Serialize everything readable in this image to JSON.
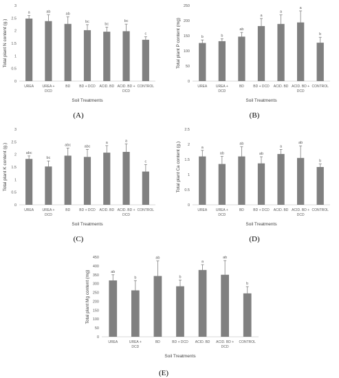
{
  "chart_data": [
    {
      "type": "bar",
      "panel": "(A)",
      "categories": [
        "UREA",
        "UREA +\nDCD",
        "BD",
        "BD + DCD",
        "ACID. BD",
        "ACID. BD +\nDCD",
        "CONTROL"
      ],
      "values": [
        2.48,
        2.38,
        2.27,
        2.02,
        1.96,
        1.98,
        1.64
      ],
      "errors": [
        0.12,
        0.25,
        0.28,
        0.22,
        0.18,
        0.28,
        0.12
      ],
      "letters": [
        "a",
        "ab",
        "ab",
        "bc",
        "bc",
        "bc",
        "c"
      ],
      "ylabel": "Total plant N content (g.)",
      "xlabel": "Soil Treatments",
      "ylim": [
        0,
        3
      ],
      "yticks": [
        "0",
        "0.5",
        "1",
        "1.5",
        "2",
        "2.5",
        "3"
      ]
    },
    {
      "type": "bar",
      "panel": "(B)",
      "categories": [
        "UREA",
        "UREA +\nDCD",
        "BD",
        "BD + DCD",
        "ACID. BD",
        "ACID. BD +\nDCD",
        "CONTROL"
      ],
      "values": [
        126,
        132,
        147,
        182,
        189,
        194,
        127
      ],
      "errors": [
        10,
        8,
        14,
        25,
        30,
        38,
        18
      ],
      "letters": [
        "b",
        "b",
        "ab",
        "a",
        "a",
        "a",
        "b"
      ],
      "ylabel": "Total plant P content (mg)",
      "xlabel": "Soil Treatments",
      "ylim": [
        0,
        250
      ],
      "yticks": [
        "0",
        "50",
        "100",
        "150",
        "200",
        "250"
      ]
    },
    {
      "type": "bar",
      "panel": "(C)",
      "categories": [
        "UREA",
        "UREA +\nDCD",
        "BD",
        "BD + DCD",
        "ACID. BD",
        "ACID. BD +\nDCD",
        "CONTROL"
      ],
      "values": [
        1.82,
        1.52,
        1.95,
        1.9,
        2.07,
        2.1,
        1.32
      ],
      "errors": [
        0.12,
        0.22,
        0.3,
        0.3,
        0.28,
        0.32,
        0.28
      ],
      "letters": [
        "abc",
        "bc",
        "abc",
        "abc",
        "a",
        "a",
        "c"
      ],
      "ylabel": "Total plant K content (g.)",
      "xlabel": "Soil Treatments",
      "ylim": [
        0,
        3
      ],
      "yticks": [
        "0",
        "0.5",
        "1",
        "1.5",
        "2",
        "2.5",
        "3"
      ]
    },
    {
      "type": "bar",
      "panel": "(D)",
      "categories": [
        "UREA",
        "UREA +\nDCD",
        "BD",
        "BD + DCD",
        "ACID. BD",
        "ACID. BD +\nDCD",
        "CONTROL"
      ],
      "values": [
        1.6,
        1.35,
        1.6,
        1.37,
        1.68,
        1.55,
        1.25
      ],
      "errors": [
        0.2,
        0.25,
        0.32,
        0.22,
        0.15,
        0.4,
        0.1
      ],
      "letters": [
        "a",
        "ab",
        "ab",
        "ab",
        "a",
        "ab",
        "b"
      ],
      "ylabel": "Total plant Ca content (g.)",
      "xlabel": "Soil Treatments",
      "ylim": [
        0,
        2.5
      ],
      "yticks": [
        "0",
        "0.5",
        "1",
        "1.5",
        "2",
        "2.5"
      ]
    },
    {
      "type": "bar",
      "panel": "(E)",
      "categories": [
        "UREA",
        "UREA +\nDCD",
        "BD",
        "BD + DCD",
        "ACID. BD",
        "ACID. BD +\nDCD",
        "CONTROL"
      ],
      "values": [
        318,
        262,
        343,
        285,
        377,
        350,
        245
      ],
      "errors": [
        32,
        55,
        85,
        35,
        30,
        80,
        38
      ],
      "letters": [
        "ab",
        "b",
        "ab",
        "b",
        "a",
        "ab",
        "b"
      ],
      "ylabel": "Total plant Mg content (mg)",
      "xlabel": "Soil Treatments",
      "ylim": [
        0,
        450
      ],
      "yticks": [
        "0",
        "50",
        "100",
        "150",
        "200",
        "250",
        "300",
        "350",
        "400",
        "450"
      ]
    }
  ]
}
